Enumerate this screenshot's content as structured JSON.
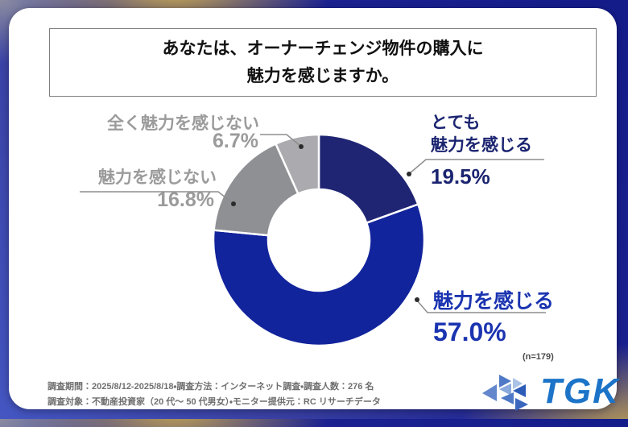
{
  "title": {
    "text": "あなたは、オーナーチェンジ物件の購入に\n魅力を感じますか。"
  },
  "chart_data": {
    "type": "pie",
    "style": "donut",
    "title": "あなたは、オーナーチェンジ物件の購入に魅力を感じますか。",
    "sample_size_note": "(n=179)",
    "start_angle_deg": 0,
    "direction": "clockwise",
    "donut_hole_ratio": 0.48,
    "segments": [
      {
        "label": "とても魅力を感じる",
        "value": 19.5,
        "color": "#1f2573"
      },
      {
        "label": "魅力を感じる",
        "value": 57.0,
        "color": "#12249c"
      },
      {
        "label": "魅力を感じない",
        "value": 16.8,
        "color": "#8f9094"
      },
      {
        "label": "全く魅力を感じない",
        "value": 6.7,
        "color": "#ababaf"
      }
    ],
    "callouts": [
      {
        "text": "とても\n魅力を感じる",
        "pct": "19.5%",
        "color": "#1b2470"
      },
      {
        "text": "魅力を感じる",
        "pct": "57.0%",
        "color": "#1b34b0"
      },
      {
        "text": "魅力を感じない",
        "pct": "16.8%",
        "color": "#9b9b9b"
      },
      {
        "text": "全く魅力を感じない",
        "pct": "6.7%",
        "color": "#9b9b9b"
      }
    ]
  },
  "footer": {
    "line1": "調査期間：2025/8/12-2025/8/18・調査方法：インターネット調査・調査人数：276 名",
    "line2": "調査対象：不動産投資家（20 代～ 50 代男女）・モニター提供元：RC リサーチデータ"
  },
  "logo": {
    "text": "TGK"
  }
}
